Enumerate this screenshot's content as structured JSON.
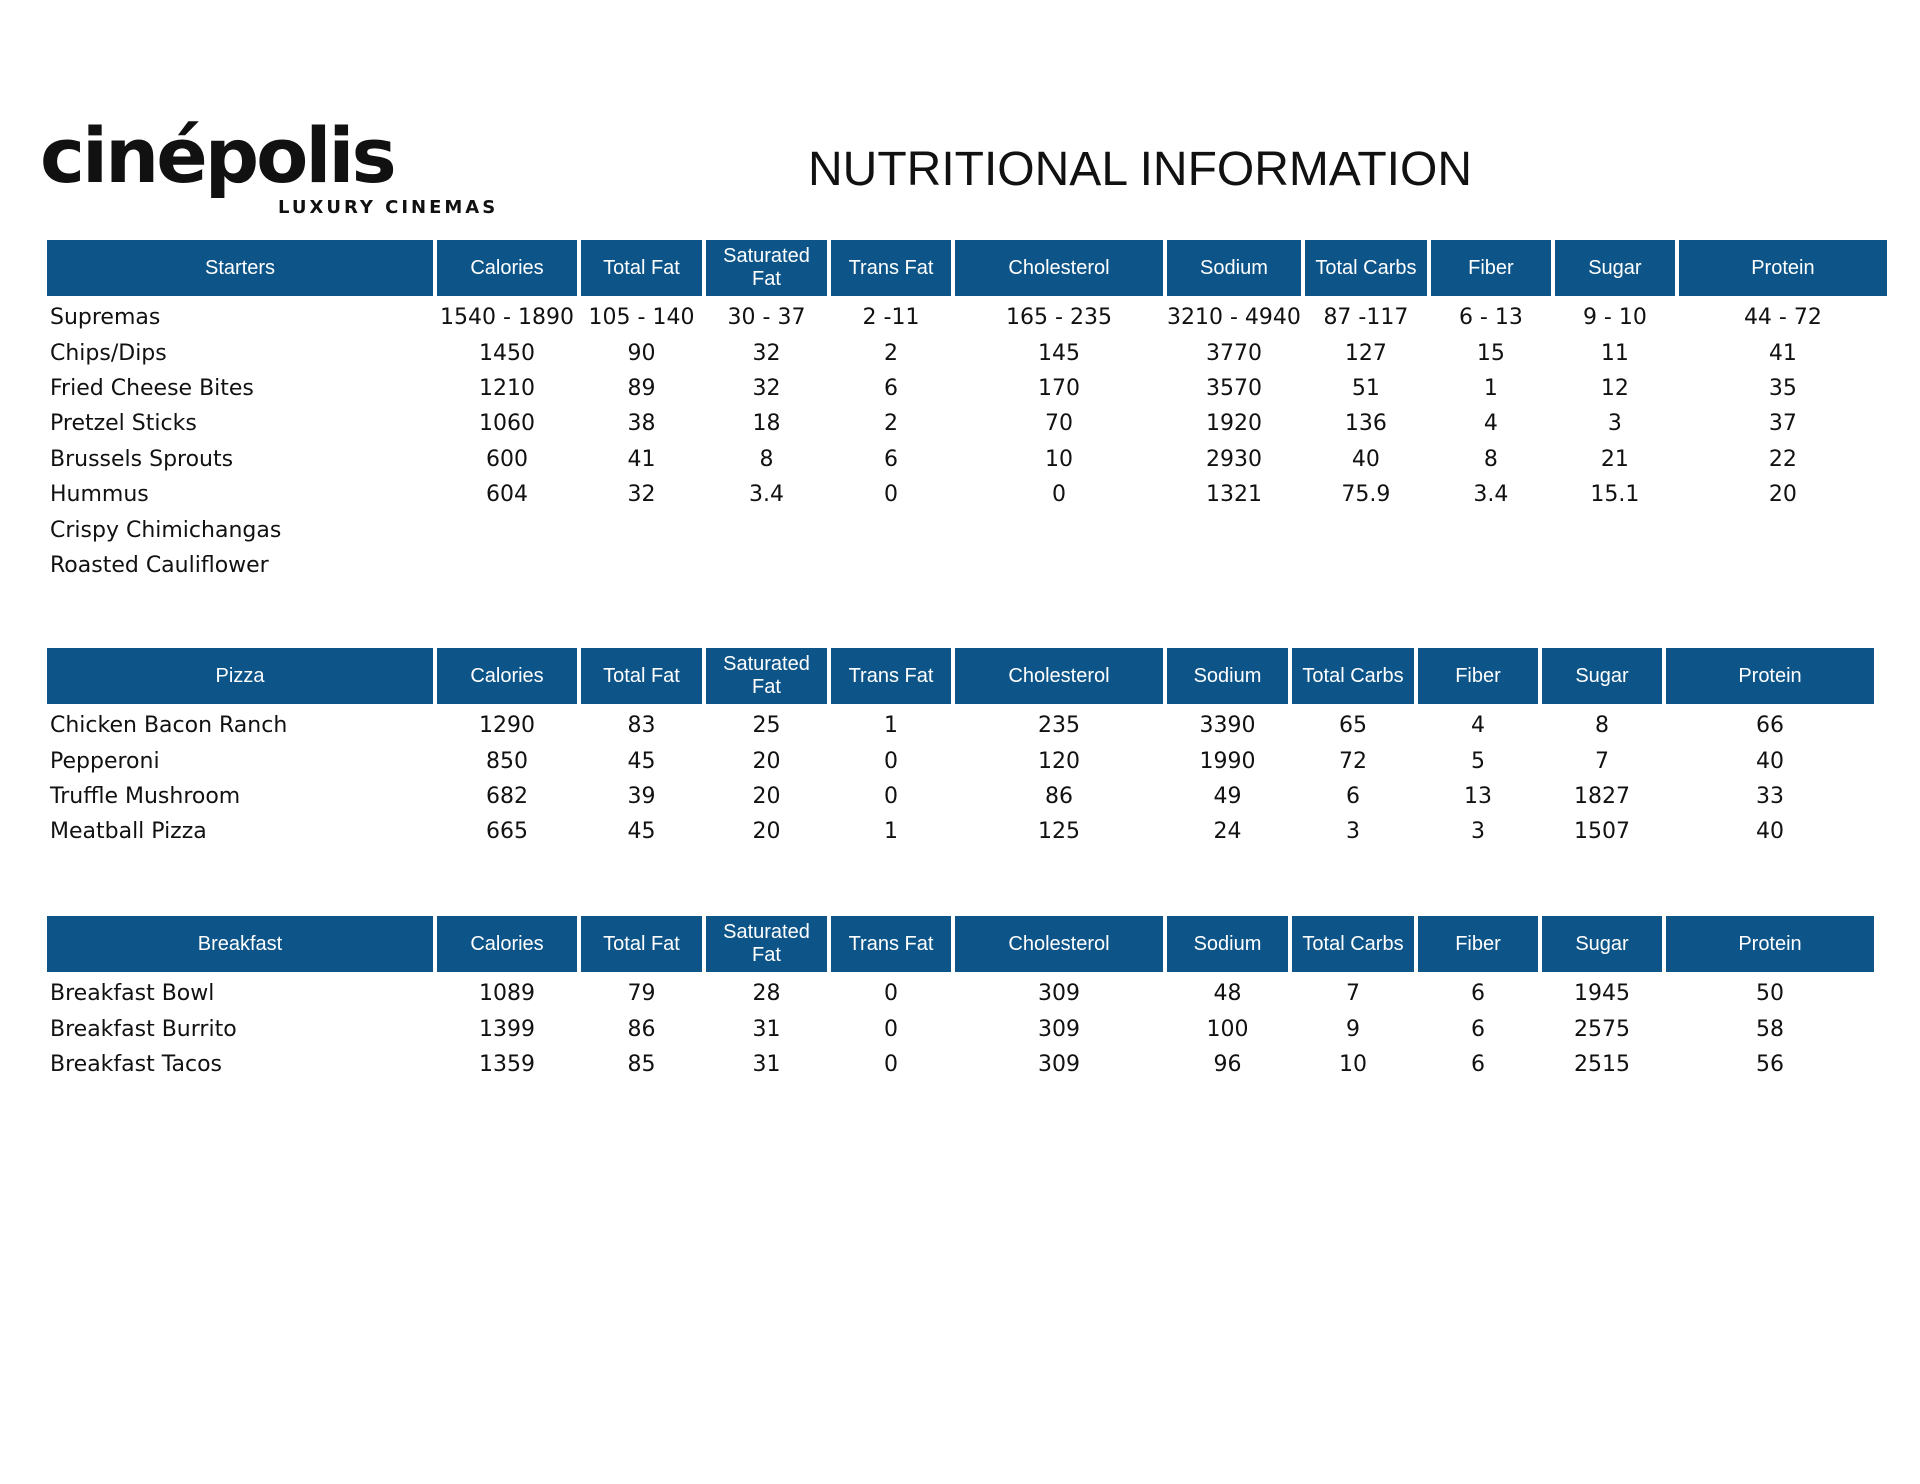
{
  "header": {
    "logo": "cinépolis",
    "logo_subtitle": "LUXURY CINEMAS",
    "title": "NUTRITIONAL INFORMATION"
  },
  "tables": [
    {
      "columns": [
        "Starters",
        "Calories",
        "Total Fat",
        "Saturated Fat",
        "Trans Fat",
        "Cholesterol",
        "Sodium",
        "Total Carbs",
        "Fiber",
        "Sugar",
        "Protein"
      ],
      "rows": [
        [
          "Supremas",
          "1540 - 1890",
          "105 - 140",
          "30 - 37",
          "2 -11",
          "165 - 235",
          "3210 - 4940",
          "87 -117",
          "6 - 13",
          "9 - 10",
          "44 - 72"
        ],
        [
          "Chips/Dips",
          "1450",
          "90",
          "32",
          "2",
          "145",
          "3770",
          "127",
          "15",
          "11",
          "41"
        ],
        [
          "Fried Cheese Bites",
          "1210",
          "89",
          "32",
          "6",
          "170",
          "3570",
          "51",
          "1",
          "12",
          "35"
        ],
        [
          "Pretzel Sticks",
          "1060",
          "38",
          "18",
          "2",
          "70",
          "1920",
          "136",
          "4",
          "3",
          "37"
        ],
        [
          "Brussels Sprouts",
          "600",
          "41",
          "8",
          "6",
          "10",
          "2930",
          "40",
          "8",
          "21",
          "22"
        ],
        [
          "Hummus",
          "604",
          "32",
          "3.4",
          "0",
          "0",
          "1321",
          "75.9",
          "3.4",
          "15.1",
          "20"
        ],
        [
          "Crispy Chimichangas"
        ],
        [
          "Roasted Cauliflower"
        ]
      ]
    },
    {
      "columns": [
        "Pizza",
        "Calories",
        "Total Fat",
        "Saturated Fat",
        "Trans Fat",
        "Cholesterol",
        "Sodium",
        "Total Carbs",
        "Fiber",
        "Sugar",
        "Protein"
      ],
      "rows": [
        [
          "Chicken Bacon Ranch",
          "1290",
          "83",
          "25",
          "1",
          "235",
          "3390",
          "65",
          "4",
          "8",
          "66"
        ],
        [
          "Pepperoni",
          "850",
          "45",
          "20",
          "0",
          "120",
          "1990",
          "72",
          "5",
          "7",
          "40"
        ],
        [
          "Truffle Mushroom",
          "682",
          "39",
          "20",
          "0",
          "86",
          "49",
          "6",
          "13",
          "1827",
          "33"
        ],
        [
          "Meatball Pizza",
          "665",
          "45",
          "20",
          "1",
          "125",
          "24",
          "3",
          "3",
          "1507",
          "40"
        ]
      ]
    },
    {
      "columns": [
        "Breakfast",
        "Calories",
        "Total Fat",
        "Saturated Fat",
        "Trans Fat",
        "Cholesterol",
        "Sodium",
        "Total Carbs",
        "Fiber",
        "Sugar",
        "Protein"
      ],
      "rows": [
        [
          "Breakfast Bowl",
          "1089",
          "79",
          "28",
          "0",
          "309",
          "48",
          "7",
          "6",
          "1945",
          "50"
        ],
        [
          "Breakfast Burrito",
          "1399",
          "86",
          "31",
          "0",
          "309",
          "100",
          "9",
          "6",
          "2575",
          "58"
        ],
        [
          "Breakfast Tacos",
          "1359",
          "85",
          "31",
          "0",
          "309",
          "96",
          "10",
          "6",
          "2515",
          "56"
        ]
      ]
    }
  ]
}
